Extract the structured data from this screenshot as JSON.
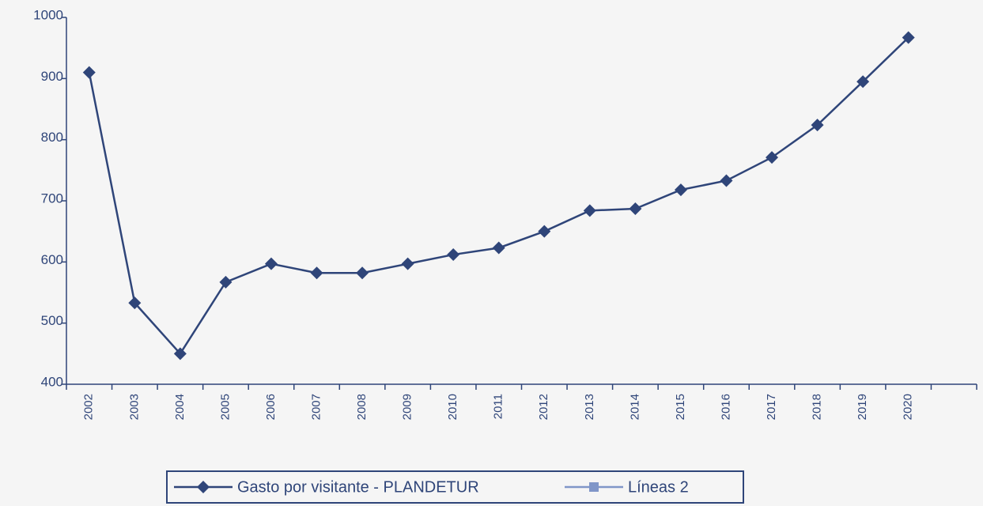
{
  "chart_data": {
    "type": "line",
    "categories": [
      "2002",
      "2003",
      "2004",
      "2005",
      "2006",
      "2007",
      "2008",
      "2009",
      "2010",
      "2011",
      "2012",
      "2013",
      "2014",
      "2015",
      "2016",
      "2017",
      "2018",
      "2019",
      "2020",
      null
    ],
    "series": [
      {
        "name": "Gasto por visitante - PLANDETUR",
        "color": "#2f4579",
        "values": [
          910,
          533,
          450,
          567,
          597,
          582,
          582,
          597,
          612,
          623,
          650,
          684,
          687,
          718,
          733,
          771,
          824,
          895,
          967,
          null
        ]
      },
      {
        "name": "Líneas 2",
        "color": "#8096c8",
        "values": [
          null,
          null,
          null,
          null,
          null,
          null,
          null,
          null,
          null,
          null,
          null,
          null,
          null,
          null,
          null,
          null,
          null,
          null,
          null,
          null
        ]
      }
    ],
    "ylim": [
      400,
      1000
    ],
    "yticks": [
      400,
      500,
      600,
      700,
      800,
      900,
      1000
    ],
    "legend": "bottom"
  }
}
